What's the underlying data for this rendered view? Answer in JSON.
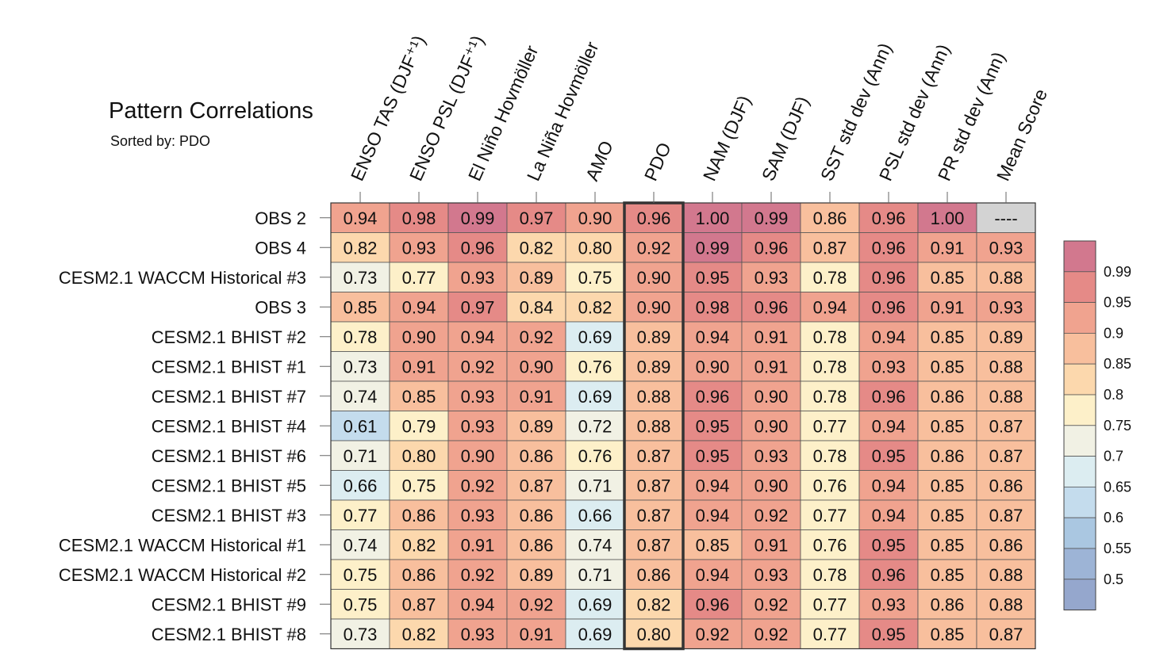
{
  "title": "Pattern Correlations",
  "subtitle": "Sorted by: PDO",
  "chart_data": {
    "type": "heatmap",
    "columns": [
      "ENSO TAS (DJF⁺¹)",
      "ENSO PSL (DJF⁺¹)",
      "El Niño Hovmöller",
      "La Niña Hovmöller",
      "AMO",
      "PDO",
      "NAM (DJF)",
      "SAM (DJF)",
      "SST std dev (Ann)",
      "PSL std dev (Ann)",
      "PR std dev (Ann)",
      "Mean Score"
    ],
    "rows": [
      "OBS 2",
      "OBS 4",
      "CESM2.1 WACCM Historical #3",
      "OBS 3",
      "CESM2.1 BHIST #2",
      "CESM2.1 BHIST #1",
      "CESM2.1 BHIST #7",
      "CESM2.1 BHIST #4",
      "CESM2.1 BHIST #6",
      "CESM2.1 BHIST #5",
      "CESM2.1 BHIST #3",
      "CESM2.1 WACCM Historical #1",
      "CESM2.1 WACCM Historical #2",
      "CESM2.1 BHIST #9",
      "CESM2.1 BHIST #8"
    ],
    "values": [
      [
        "0.94",
        "0.98",
        "0.99",
        "0.97",
        "0.90",
        "0.96",
        "1.00",
        "0.99",
        "0.86",
        "0.96",
        "1.00",
        "----"
      ],
      [
        "0.82",
        "0.93",
        "0.96",
        "0.82",
        "0.80",
        "0.92",
        "0.99",
        "0.96",
        "0.87",
        "0.96",
        "0.91",
        "0.93"
      ],
      [
        "0.73",
        "0.77",
        "0.93",
        "0.89",
        "0.75",
        "0.90",
        "0.95",
        "0.93",
        "0.78",
        "0.96",
        "0.85",
        "0.88"
      ],
      [
        "0.85",
        "0.94",
        "0.97",
        "0.84",
        "0.82",
        "0.90",
        "0.98",
        "0.96",
        "0.94",
        "0.96",
        "0.91",
        "0.93"
      ],
      [
        "0.78",
        "0.90",
        "0.94",
        "0.92",
        "0.69",
        "0.89",
        "0.94",
        "0.91",
        "0.78",
        "0.94",
        "0.85",
        "0.89"
      ],
      [
        "0.73",
        "0.91",
        "0.92",
        "0.90",
        "0.76",
        "0.89",
        "0.90",
        "0.91",
        "0.78",
        "0.93",
        "0.85",
        "0.88"
      ],
      [
        "0.74",
        "0.85",
        "0.93",
        "0.91",
        "0.69",
        "0.88",
        "0.96",
        "0.90",
        "0.78",
        "0.96",
        "0.86",
        "0.88"
      ],
      [
        "0.61",
        "0.79",
        "0.93",
        "0.89",
        "0.72",
        "0.88",
        "0.95",
        "0.90",
        "0.77",
        "0.94",
        "0.85",
        "0.87"
      ],
      [
        "0.71",
        "0.80",
        "0.90",
        "0.86",
        "0.76",
        "0.87",
        "0.95",
        "0.93",
        "0.78",
        "0.95",
        "0.86",
        "0.87"
      ],
      [
        "0.66",
        "0.75",
        "0.92",
        "0.87",
        "0.71",
        "0.87",
        "0.94",
        "0.90",
        "0.76",
        "0.94",
        "0.85",
        "0.86"
      ],
      [
        "0.77",
        "0.86",
        "0.93",
        "0.86",
        "0.66",
        "0.87",
        "0.94",
        "0.92",
        "0.77",
        "0.94",
        "0.85",
        "0.87"
      ],
      [
        "0.74",
        "0.82",
        "0.91",
        "0.86",
        "0.74",
        "0.87",
        "0.85",
        "0.91",
        "0.76",
        "0.95",
        "0.85",
        "0.86"
      ],
      [
        "0.75",
        "0.86",
        "0.92",
        "0.89",
        "0.71",
        "0.86",
        "0.94",
        "0.93",
        "0.78",
        "0.96",
        "0.85",
        "0.88"
      ],
      [
        "0.75",
        "0.87",
        "0.94",
        "0.92",
        "0.69",
        "0.82",
        "0.96",
        "0.92",
        "0.77",
        "0.93",
        "0.86",
        "0.88"
      ],
      [
        "0.73",
        "0.82",
        "0.93",
        "0.91",
        "0.69",
        "0.80",
        "0.92",
        "0.92",
        "0.77",
        "0.95",
        "0.85",
        "0.87"
      ]
    ],
    "highlight_column": "PDO",
    "colorbar": {
      "labels": [
        "0.99",
        "0.95",
        "0.9",
        "0.85",
        "0.8",
        "0.75",
        "0.7",
        "0.65",
        "0.6",
        "0.55",
        "0.5"
      ],
      "thresholds": [
        0.99,
        0.95,
        0.9,
        0.85,
        0.8,
        0.75,
        0.7,
        0.65,
        0.6,
        0.55,
        0.5
      ],
      "colors": [
        "#d2788e",
        "#e58a87",
        "#f0a38f",
        "#f8bf9d",
        "#fcd8ad",
        "#fdf0c9",
        "#f1f1e4",
        "#dcedf1",
        "#c4dced",
        "#aac7e1",
        "#9db4d6",
        "#95a7cd"
      ]
    },
    "missing_color": "#d3d3d3"
  }
}
